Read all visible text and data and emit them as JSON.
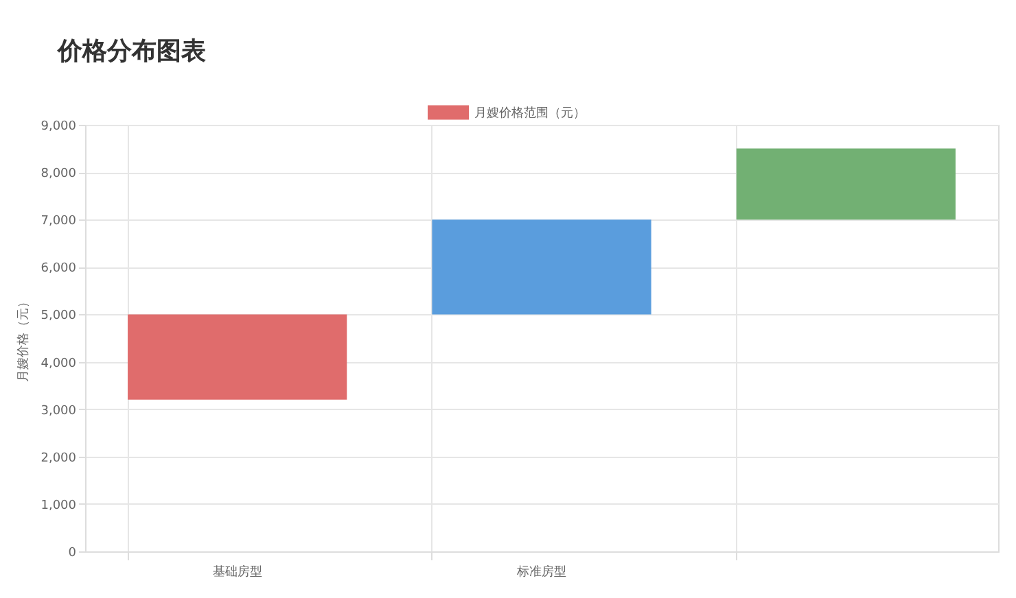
{
  "chart_data": {
    "type": "bar",
    "title": "价格分布图表",
    "ylabel": "月嫂价格（元）",
    "categories": [
      "基础房型",
      "标准房型",
      null
    ],
    "series": [
      {
        "name": "月嫂价格范围（元）",
        "colors": [
          "#e06c6c",
          "#5a9ddd",
          "#72b073"
        ],
        "base": [
          3200,
          5000,
          7000
        ],
        "values": [
          1800,
          2000,
          1500
        ]
      }
    ],
    "ylim": [
      0,
      9000
    ],
    "yticks": [
      {
        "value": 0,
        "label": "0"
      },
      {
        "value": 1000,
        "label": "1,000"
      },
      {
        "value": 2000,
        "label": "2,000"
      },
      {
        "value": 3000,
        "label": "3,000"
      },
      {
        "value": 4000,
        "label": "4,000"
      },
      {
        "value": 5000,
        "label": "5,000"
      },
      {
        "value": 6000,
        "label": "6,000"
      },
      {
        "value": 7000,
        "label": "7,000"
      },
      {
        "value": 8000,
        "label": "8,000"
      },
      {
        "value": 9000,
        "label": "9,000"
      }
    ],
    "grid": true,
    "legend": "top"
  }
}
